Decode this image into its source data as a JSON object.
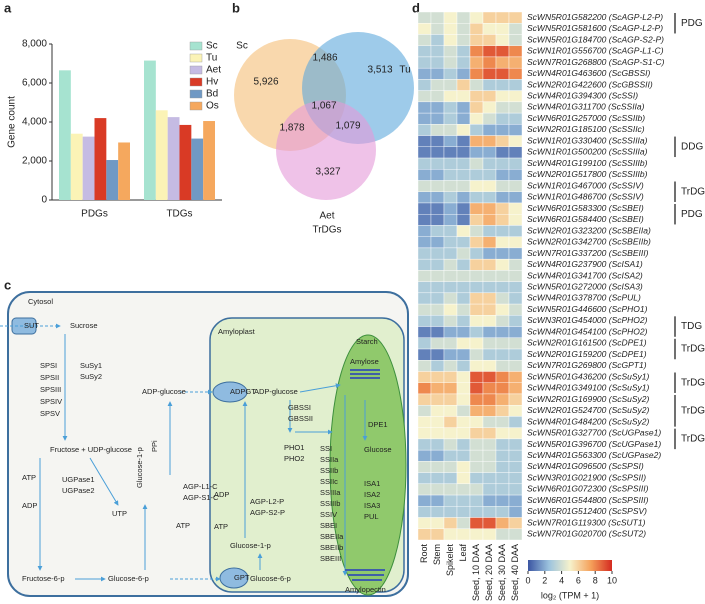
{
  "panel_labels": [
    "a",
    "b",
    "c",
    "d"
  ],
  "chart_data": [
    {
      "type": "bar",
      "ylabel": "Gene count",
      "categories": [
        "PDGs",
        "TDGs"
      ],
      "series": [
        {
          "name": "Sc",
          "color": "#a6e3d0",
          "values": [
            6650,
            7150
          ]
        },
        {
          "name": "Tu",
          "color": "#fbf3b6",
          "values": [
            3400,
            4600
          ]
        },
        {
          "name": "Aet",
          "color": "#c5bbe3",
          "values": [
            3250,
            4250
          ]
        },
        {
          "name": "Hv",
          "color": "#d93a25",
          "values": [
            4200,
            3850
          ]
        },
        {
          "name": "Bd",
          "color": "#7099c4",
          "values": [
            2050,
            3150
          ]
        },
        {
          "name": "Os",
          "color": "#f5a85e",
          "values": [
            2950,
            4050
          ]
        }
      ],
      "ylim": [
        0,
        8000
      ],
      "yticks": [
        0,
        {
          "value": 2000,
          "label": "2,000"
        },
        {
          "value": 4000,
          "label": "4,000"
        },
        {
          "value": 6000,
          "label": "6,000"
        },
        {
          "value": 8000,
          "label": "8,000"
        }
      ],
      "legend": "upper right"
    },
    {
      "type": "venn",
      "title": "TrDGs",
      "sets": [
        {
          "name": "Sc",
          "color": "#f5be76"
        },
        {
          "name": "Tu",
          "color": "#5ea9dc"
        },
        {
          "name": "Aet",
          "color": "#e59ad8"
        }
      ],
      "values": [
        5926,
        1486,
        3513,
        1067,
        1878,
        1079,
        3327
      ],
      "value_labels": [
        "5,926",
        "1,486",
        "3,513",
        "1,067",
        "1,878",
        "1,079",
        "3,327"
      ]
    },
    {
      "type": "heatmap",
      "row_labels": [
        "ScWN5R01G582200 (ScAGP-L2-P)",
        "ScWN5R01G581600 (ScAGP-L2-P)",
        "ScWN5R01G184700 (ScAGP-S2-P)",
        "ScWN1R01G556700 (ScAGP-L1-C)",
        "ScWN7R01G268800 (ScAGP-S1-C)",
        "ScWN4R01G463600 (ScGBSSI)",
        "ScWN2R01G422600 (ScGBSSII)",
        "ScWN4R01G394300 (ScSSI)",
        "ScWN4R01G311700 (ScSSIIa)",
        "ScWN6R01G257000 (ScSSIIb)",
        "ScWN2R01G185100 (ScSSIIc)",
        "ScWN1R01G330400 (ScSSIIIa)",
        "ScWN1R01G500200 (ScSSIIIa)",
        "ScWN4R01G199100 (ScSSIIIb)",
        "ScWN2R01G517800 (ScSSIIIb)",
        "ScWN1R01G467000 (ScSSIV)",
        "ScWN1R01G486700 (ScSSIV)",
        "ScWN6R01G583300 (ScSBEI)",
        "ScWN6R01G584400 (ScSBEI)",
        "ScWN2R01G323200 (ScSBEIIa)",
        "ScWN2R01G342700 (ScSBEIIb)",
        "ScWN7R01G337200 (ScSBEIII)",
        "ScWN4R01G237900 (ScISA1)",
        "ScWN4R01G341700 (ScISA2)",
        "ScWN5R01G272000 (ScISA3)",
        "ScWN4R01G378700 (ScPUL)",
        "ScWN5R01G446600 (ScPHO1)",
        "ScWN3R01G454000 (ScPHO2)",
        "ScWN4R01G454100 (ScPHO2)",
        "ScWN2R01G161500 (ScDPE1)",
        "ScWN2R01G159200 (ScDPE1)",
        "ScWN7R01G269800 (ScGPT1)",
        "ScWN5R01G436200 (ScSuSy1)",
        "ScWN4R01G349100 (ScSuSy1)",
        "ScWN2R01G169900 (ScSuSy2)",
        "ScWN2R01G524700 (ScSuSy2)",
        "ScWN4R01G484200 (ScSuSy2)",
        "ScWN5R01G327700 (ScUGPase1)",
        "ScWN5R01G396700 (ScUGPase1)",
        "ScWN4R01G563300 (ScUGPase2)",
        "ScWN4R01G096500 (ScSPSI)",
        "ScWN3R01G021900 (ScSPSII)",
        "ScWN6R01G072300 (ScSPSIII)",
        "ScWN6R01G544800 (ScSPSIII)",
        "ScWN5R01G512400 (ScSPSV)",
        "ScWN7R01G119300 (ScSUT1)",
        "ScWN7R01G020700 (ScSUT2)"
      ],
      "row_label_colors": [
        "#e03c2a",
        "#e03c2a",
        "#111111",
        "#111111",
        "#111111",
        "#111111",
        "#111111",
        "#111111",
        "#111111",
        "#111111",
        "#111111",
        "#e03c2a",
        "#e03c2a",
        "#111111",
        "#111111",
        "#e03c2a",
        "#e03c2a",
        "#e03c2a",
        "#e03c2a",
        "#111111",
        "#111111",
        "#111111",
        "#111111",
        "#111111",
        "#111111",
        "#111111",
        "#111111",
        "#e03c2a",
        "#e03c2a",
        "#e03c2a",
        "#e03c2a",
        "#111111",
        "#e03c2a",
        "#e03c2a",
        "#e03c2a",
        "#e03c2a",
        "#e03c2a",
        "#e03c2a",
        "#e03c2a",
        "#111111",
        "#111111",
        "#111111",
        "#111111",
        "#111111",
        "#111111",
        "#111111",
        "#111111"
      ],
      "columns": [
        "Root",
        "Stem",
        "Spikelet",
        "Leaf",
        "Seed, 10 DAA",
        "Seed, 20 DAA",
        "Seed, 30 DAA",
        "Seed, 40 DAA"
      ],
      "values": [
        [
          4,
          4,
          5,
          4,
          5,
          6,
          6,
          6
        ],
        [
          5,
          4,
          5,
          4,
          6,
          5,
          5,
          4
        ],
        [
          4,
          3,
          5,
          4,
          6,
          6,
          5,
          4
        ],
        [
          3,
          3,
          4,
          3,
          8,
          9,
          9,
          8
        ],
        [
          3,
          3,
          4,
          3,
          7,
          8,
          7,
          7
        ],
        [
          2,
          2,
          3,
          2,
          8,
          9,
          9,
          8
        ],
        [
          3,
          4,
          4,
          6,
          4,
          3,
          3,
          3
        ],
        [
          4,
          4,
          5,
          5,
          6,
          6,
          5,
          5
        ],
        [
          2,
          2,
          3,
          2,
          6,
          5,
          4,
          4
        ],
        [
          2,
          2,
          3,
          2,
          5,
          4,
          3,
          3
        ],
        [
          3,
          4,
          4,
          5,
          3,
          2,
          2,
          2
        ],
        [
          1,
          1,
          2,
          1,
          7,
          7,
          6,
          5
        ],
        [
          1,
          1,
          1,
          1,
          2,
          2,
          1,
          1
        ],
        [
          3,
          3,
          3,
          3,
          4,
          3,
          3,
          3
        ],
        [
          2,
          2,
          3,
          3,
          3,
          3,
          2,
          2
        ],
        [
          4,
          4,
          4,
          4,
          5,
          5,
          4,
          4
        ],
        [
          2,
          2,
          3,
          2,
          3,
          3,
          2,
          2
        ],
        [
          1,
          1,
          2,
          1,
          7,
          7,
          6,
          5
        ],
        [
          1,
          1,
          2,
          1,
          6,
          7,
          6,
          5
        ],
        [
          2,
          3,
          3,
          5,
          4,
          3,
          3,
          3
        ],
        [
          2,
          2,
          3,
          3,
          6,
          7,
          5,
          5
        ],
        [
          3,
          3,
          3,
          4,
          3,
          2,
          2,
          2
        ],
        [
          3,
          3,
          4,
          3,
          6,
          6,
          5,
          4
        ],
        [
          4,
          4,
          4,
          4,
          4,
          4,
          4,
          4
        ],
        [
          3,
          3,
          3,
          3,
          3,
          3,
          3,
          3
        ],
        [
          3,
          3,
          4,
          3,
          6,
          6,
          4,
          3
        ],
        [
          4,
          4,
          5,
          4,
          6,
          6,
          5,
          4
        ],
        [
          3,
          3,
          4,
          3,
          5,
          5,
          4,
          3
        ],
        [
          1,
          1,
          2,
          2,
          3,
          2,
          2,
          2
        ],
        [
          3,
          4,
          4,
          5,
          5,
          4,
          4,
          4
        ],
        [
          1,
          1,
          2,
          2,
          4,
          3,
          3,
          3
        ],
        [
          4,
          3,
          4,
          3,
          5,
          5,
          4,
          4
        ],
        [
          6,
          6,
          6,
          5,
          9,
          9,
          8,
          7
        ],
        [
          8,
          7,
          7,
          5,
          9,
          8,
          8,
          7
        ],
        [
          6,
          6,
          6,
          5,
          8,
          8,
          7,
          6
        ],
        [
          4,
          5,
          5,
          4,
          7,
          7,
          6,
          5
        ],
        [
          5,
          5,
          6,
          5,
          5,
          4,
          4,
          3
        ],
        [
          5,
          5,
          5,
          5,
          6,
          6,
          5,
          5
        ],
        [
          3,
          3,
          4,
          3,
          4,
          4,
          3,
          3
        ],
        [
          2,
          2,
          3,
          3,
          4,
          4,
          3,
          3
        ],
        [
          4,
          4,
          4,
          5,
          4,
          4,
          3,
          3
        ],
        [
          3,
          3,
          3,
          5,
          3,
          3,
          3,
          3
        ],
        [
          4,
          4,
          4,
          4,
          4,
          3,
          3,
          3
        ],
        [
          2,
          2,
          3,
          3,
          3,
          2,
          2,
          2
        ],
        [
          3,
          3,
          3,
          3,
          3,
          3,
          3,
          2
        ],
        [
          5,
          5,
          6,
          4,
          9,
          9,
          7,
          6
        ],
        [
          6,
          6,
          5,
          5,
          5,
          5,
          4,
          4
        ]
      ],
      "clim": [
        0,
        10
      ],
      "cticks": [
        0,
        2,
        4,
        6,
        8,
        10
      ],
      "colorbar_label": "log₂ (TPM + 1)",
      "colormap": [
        "#3b55a2",
        "#9cc3de",
        "#f6f2cc",
        "#f5a05a",
        "#d42a20"
      ],
      "groups": [
        {
          "label": "PDG",
          "rows": [
            0,
            1
          ]
        },
        {
          "label": "DDG",
          "rows": [
            11,
            12
          ]
        },
        {
          "label": "TrDG",
          "rows": [
            15,
            16
          ]
        },
        {
          "label": "PDG",
          "rows": [
            17,
            18
          ]
        },
        {
          "label": "TDG",
          "rows": [
            27,
            28
          ]
        },
        {
          "label": "TrDG",
          "rows": [
            29,
            30
          ]
        },
        {
          "label": "TrDG",
          "rows": [
            32,
            33
          ]
        },
        {
          "label": "TrDG",
          "rows": [
            34,
            36
          ]
        },
        {
          "label": "TrDG",
          "rows": [
            37,
            38
          ]
        }
      ]
    }
  ],
  "diagram": {
    "labels": [
      {
        "text": "Cytosol",
        "color": "#222222"
      },
      {
        "text": "SUT",
        "color": "#222222"
      },
      {
        "text": "Sucrose",
        "color": "#222222"
      },
      {
        "text": "SPSI",
        "color": "#222222"
      },
      {
        "text": "SPSII",
        "color": "#222222"
      },
      {
        "text": "SPSIII",
        "color": "#222222"
      },
      {
        "text": "SPSIV",
        "color": "#222222"
      },
      {
        "text": "SPSV",
        "color": "#222222"
      },
      {
        "text": "SuSy1",
        "color": "#e03c2a"
      },
      {
        "text": "SuSy2",
        "color": "#e03c2a"
      },
      {
        "text": "Fructose + UDP-glucose",
        "color": "#222222"
      },
      {
        "text": "ATP",
        "color": "#222222"
      },
      {
        "text": "ADP",
        "color": "#222222"
      },
      {
        "text": "UGPase1",
        "color": "#e03c2a"
      },
      {
        "text": "UGPase2",
        "color": "#222222"
      },
      {
        "text": "UTP",
        "color": "#222222"
      },
      {
        "text": "PPi",
        "color": "#222222"
      },
      {
        "text": "Glucose-1-p",
        "color": "#222222"
      },
      {
        "text": "AGP-L1-C",
        "color": "#222222"
      },
      {
        "text": "AGP-S1-C",
        "color": "#222222"
      },
      {
        "text": "ATP",
        "color": "#222222"
      },
      {
        "text": "ADP-glucose",
        "color": "#222222"
      },
      {
        "text": "Fructose-6-p",
        "color": "#222222"
      },
      {
        "text": "Glucose-6-p",
        "color": "#222222"
      },
      {
        "text": "Amyloplast",
        "color": "#222222"
      },
      {
        "text": "ADPGT",
        "color": "#222222"
      },
      {
        "text": "GPT",
        "color": "#222222"
      },
      {
        "text": "ADP-glucose",
        "color": "#222222"
      },
      {
        "text": "GBSSI",
        "color": "#222222"
      },
      {
        "text": "GBSSII",
        "color": "#222222"
      },
      {
        "text": "PHO1",
        "color": "#222222"
      },
      {
        "text": "PHO2",
        "color": "#e03c2a"
      },
      {
        "text": "ADP",
        "color": "#222222"
      },
      {
        "text": "ATP",
        "color": "#222222"
      },
      {
        "text": "AGP-L2-P",
        "color": "#e03c2a"
      },
      {
        "text": "AGP-S2-P",
        "color": "#222222"
      },
      {
        "text": "Glucose-1-p",
        "color": "#222222"
      },
      {
        "text": "Glucose-6-p",
        "color": "#222222"
      },
      {
        "text": "Starch",
        "color": "#222222"
      },
      {
        "text": "Amylose",
        "color": "#222222"
      },
      {
        "text": "DPE1",
        "color": "#e03c2a"
      },
      {
        "text": "Glucose",
        "color": "#222222"
      },
      {
        "text": "SSI",
        "color": "#222222"
      },
      {
        "text": "SSIIa",
        "color": "#222222"
      },
      {
        "text": "SSIIb",
        "color": "#222222"
      },
      {
        "text": "SSIIc",
        "color": "#222222"
      },
      {
        "text": "SSIIIa",
        "color": "#e03c2a"
      },
      {
        "text": "SSIIIb",
        "color": "#222222"
      },
      {
        "text": "SSIV",
        "color": "#e03c2a"
      },
      {
        "text": "SBEI",
        "color": "#e03c2a"
      },
      {
        "text": "SBEIIa",
        "color": "#222222"
      },
      {
        "text": "SBEIIb",
        "color": "#222222"
      },
      {
        "text": "SBEIII",
        "color": "#222222"
      },
      {
        "text": "ISA1",
        "color": "#222222"
      },
      {
        "text": "ISA2",
        "color": "#222222"
      },
      {
        "text": "ISA3",
        "color": "#222222"
      },
      {
        "text": "PUL",
        "color": "#222222"
      },
      {
        "text": "Amylopectin",
        "color": "#222222"
      }
    ]
  }
}
